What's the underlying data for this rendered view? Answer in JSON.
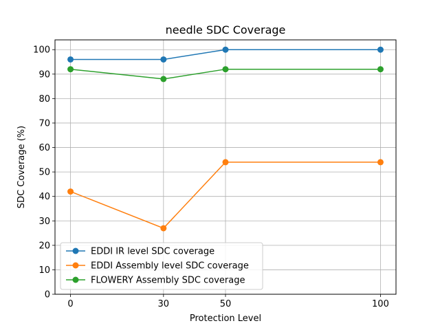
{
  "chart_data": {
    "type": "line",
    "title": "needle SDC Coverage",
    "xlabel": "Protection Level",
    "ylabel": "SDC Coverage (%)",
    "x": [
      0,
      30,
      50,
      100
    ],
    "xticks": [
      "0",
      "30",
      "50",
      "100"
    ],
    "yticks": [
      "0",
      "10",
      "20",
      "30",
      "40",
      "50",
      "60",
      "70",
      "80",
      "90",
      "100"
    ],
    "xlim": [
      -5,
      105
    ],
    "ylim": [
      0,
      104
    ],
    "grid": true,
    "legend_position": "lower-left",
    "series": [
      {
        "name": "EDDI IR level SDC coverage",
        "color": "#1f77b4",
        "values": [
          96,
          96,
          100,
          100
        ]
      },
      {
        "name": "EDDI Assembly level SDC coverage",
        "color": "#ff7f0e",
        "values": [
          42,
          27,
          54,
          54
        ]
      },
      {
        "name": "FLOWERY Assembly SDC coverage",
        "color": "#2ca02c",
        "values": [
          92,
          88,
          92,
          92
        ]
      }
    ]
  }
}
